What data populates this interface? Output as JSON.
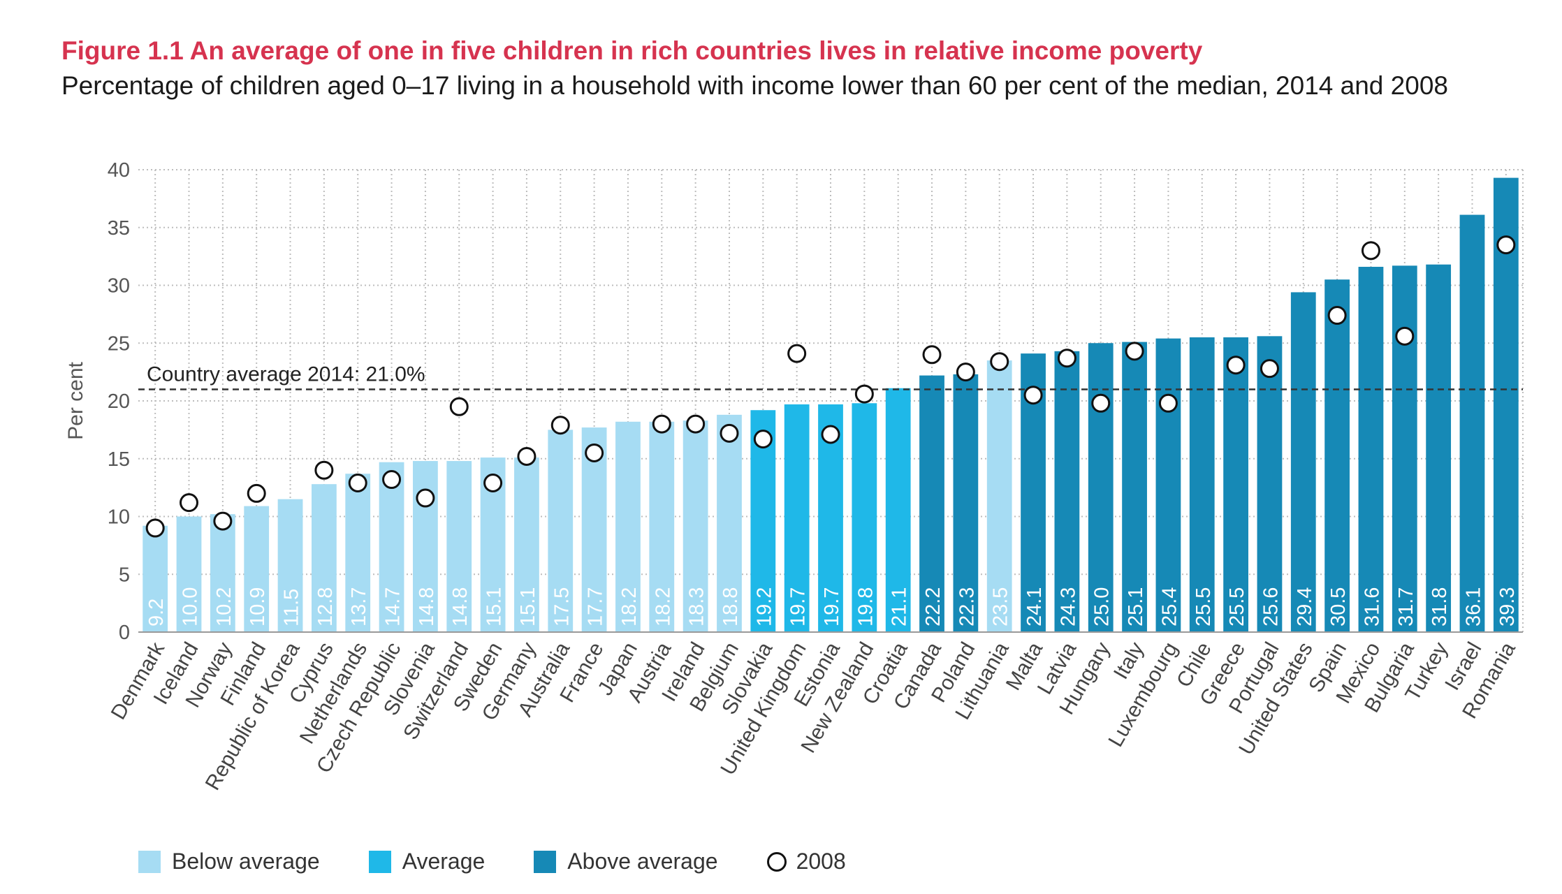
{
  "title": "Figure 1.1  An average of one in five children in rich countries lives in relative income poverty",
  "subtitle": "Percentage of children aged 0–17 living in a household with income lower than 60 per cent of the median, 2014 and 2008",
  "colors": {
    "below_average": "#a6dcf3",
    "average": "#1fb8e8",
    "above_average": "#1689b6",
    "grid": "#bdbdbd",
    "average_line": "#333333"
  },
  "legend": {
    "below_label": "Below average",
    "average_label": "Average",
    "above_label": "Above average",
    "circle_label": "2008"
  },
  "chart_data": {
    "type": "bar",
    "ylabel": "Per cent",
    "ylim": [
      0,
      40
    ],
    "yticks": [
      0,
      5,
      10,
      15,
      20,
      25,
      30,
      35,
      40
    ],
    "grid": true,
    "average_line": {
      "value": 21.0,
      "label": "Country average 2014: 21.0%"
    },
    "categories": [
      "Denmark",
      "Iceland",
      "Norway",
      "Finland",
      "Republic of Korea",
      "Cyprus",
      "Netherlands",
      "Czech Republic",
      "Slovenia",
      "Switzerland",
      "Sweden",
      "Germany",
      "Australia",
      "France",
      "Japan",
      "Austria",
      "Ireland",
      "Belgium",
      "Slovakia",
      "United Kingdom",
      "Estonia",
      "New Zealand",
      "Croatia",
      "Canada",
      "Poland",
      "Lithuania",
      "Malta",
      "Latvia",
      "Hungary",
      "Italy",
      "Luxembourg",
      "Chile",
      "Greece",
      "Portugal",
      "United States",
      "Spain",
      "Mexico",
      "Bulgaria",
      "Turkey",
      "Israel",
      "Romania"
    ],
    "series": [
      {
        "name": "2014",
        "values": [
          9.2,
          10.0,
          10.2,
          10.9,
          11.5,
          12.8,
          13.7,
          14.7,
          14.8,
          14.8,
          15.1,
          15.1,
          17.5,
          17.7,
          18.2,
          18.2,
          18.3,
          18.8,
          19.2,
          19.7,
          19.7,
          19.8,
          21.1,
          22.2,
          22.3,
          23.5,
          24.1,
          24.3,
          25.0,
          25.1,
          25.4,
          25.5,
          25.5,
          25.6,
          29.4,
          30.5,
          31.6,
          31.7,
          31.8,
          36.1,
          39.3
        ],
        "labels": [
          "9.2",
          "10.0",
          "10.2",
          "10.9",
          "11.5",
          "12.8",
          "13.7",
          "14.7",
          "14.8",
          "14.8",
          "15.1",
          "15.1",
          "17.5",
          "17.7",
          "18.2",
          "18.2",
          "18.3",
          "18.8",
          "19.2",
          "19.7",
          "19.7",
          "19.8",
          "21.1",
          "22.2",
          "22.3",
          "23.5",
          "24.1",
          "24.3",
          "25.0",
          "25.1",
          "25.4",
          "25.5",
          "25.5",
          "25.6",
          "29.4",
          "30.5",
          "31.6",
          "31.7",
          "31.8",
          "36.1",
          "39.3"
        ],
        "groups": [
          "below",
          "below",
          "below",
          "below",
          "below",
          "below",
          "below",
          "below",
          "below",
          "below",
          "below",
          "below",
          "below",
          "below",
          "below",
          "below",
          "below",
          "below",
          "average",
          "average",
          "average",
          "average",
          "average",
          "above",
          "above",
          "below",
          "above",
          "above",
          "above",
          "above",
          "above",
          "above",
          "above",
          "above",
          "above",
          "above",
          "above",
          "above",
          "above",
          "above",
          "above"
        ]
      },
      {
        "name": "2008",
        "values": [
          9.0,
          11.2,
          9.6,
          12.0,
          null,
          14.0,
          12.9,
          13.2,
          11.6,
          19.5,
          12.9,
          15.2,
          17.9,
          15.5,
          null,
          18.0,
          18.0,
          17.2,
          16.7,
          24.1,
          17.1,
          20.6,
          null,
          24.0,
          22.5,
          23.4,
          20.5,
          23.7,
          19.8,
          24.3,
          19.8,
          null,
          23.1,
          22.8,
          null,
          27.4,
          33.0,
          25.6,
          null,
          null,
          33.5
        ]
      }
    ]
  }
}
